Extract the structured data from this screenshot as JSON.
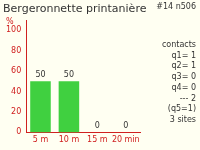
{
  "chart_data": {
    "type": "bar",
    "title": "Bergeronnette printanière",
    "y_label": "%",
    "annotations": [
      "#14 n506",
      "contacts",
      "q1= 1",
      "q2= 1",
      "q3= 0",
      "q4= 0",
      "--- 2",
      "(q5=1)",
      "3 sites"
    ],
    "categories": [
      "5 m",
      "10 m",
      "15 m",
      "20 min"
    ],
    "values": [
      50,
      50,
      0,
      0
    ],
    "color": "#40d040",
    "ylim": [
      0,
      110
    ],
    "yticks": [
      0,
      20,
      40,
      60,
      80,
      100
    ],
    "grid": false,
    "data_labels": true
  }
}
